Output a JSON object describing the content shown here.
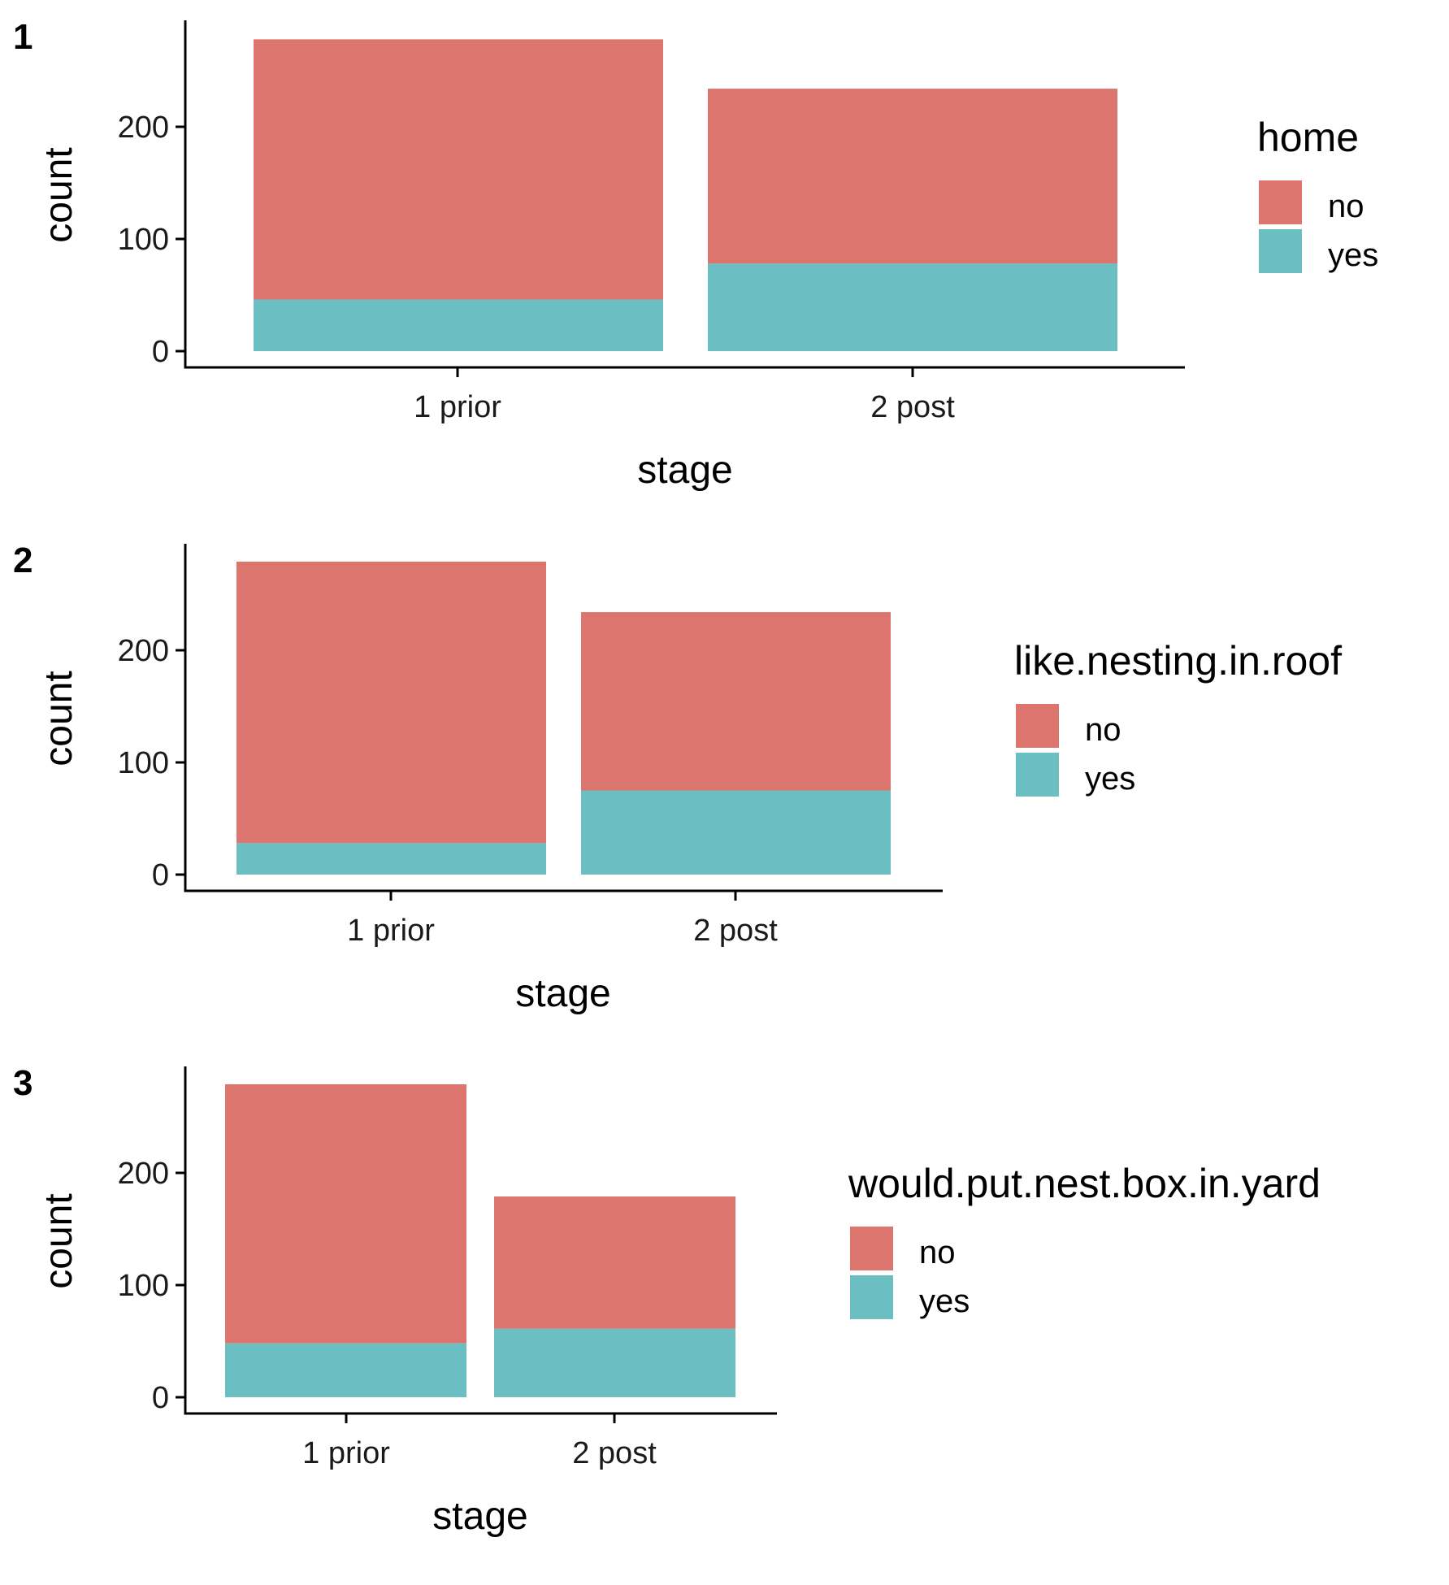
{
  "colors": {
    "no": "#DD756F",
    "yes": "#6BBEC2",
    "axis": "#000000"
  },
  "chart_data": [
    {
      "type": "bar",
      "stacked": true,
      "tag": "1",
      "categories": [
        "1 prior",
        "2 post"
      ],
      "series": [
        {
          "name": "no",
          "values": [
            232,
            156
          ]
        },
        {
          "name": "yes",
          "values": [
            46,
            78
          ]
        }
      ],
      "xlabel": "stage",
      "ylabel": "count",
      "yticks": [
        0,
        100,
        200
      ],
      "ylim": [
        -14,
        293
      ],
      "legend_title": "home",
      "legend_position": "right",
      "grid": false
    },
    {
      "type": "bar",
      "stacked": true,
      "tag": "2",
      "categories": [
        "1 prior",
        "2 post"
      ],
      "series": [
        {
          "name": "no",
          "values": [
            251,
            159
          ]
        },
        {
          "name": "yes",
          "values": [
            28,
            75
          ]
        }
      ],
      "xlabel": "stage",
      "ylabel": "count",
      "yticks": [
        0,
        100,
        200
      ],
      "ylim": [
        -14,
        293
      ],
      "legend_title": "like.nesting.in.roof",
      "legend_position": "right",
      "grid": false
    },
    {
      "type": "bar",
      "stacked": true,
      "tag": "3",
      "categories": [
        "1 prior",
        "2 post"
      ],
      "series": [
        {
          "name": "no",
          "values": [
            231,
            118
          ]
        },
        {
          "name": "yes",
          "values": [
            48,
            61
          ]
        }
      ],
      "xlabel": "stage",
      "ylabel": "count",
      "yticks": [
        0,
        100,
        200
      ],
      "ylim": [
        -14,
        293
      ],
      "legend_title": "would.put.nest.box.in.yard",
      "legend_position": "right",
      "grid": false
    }
  ]
}
